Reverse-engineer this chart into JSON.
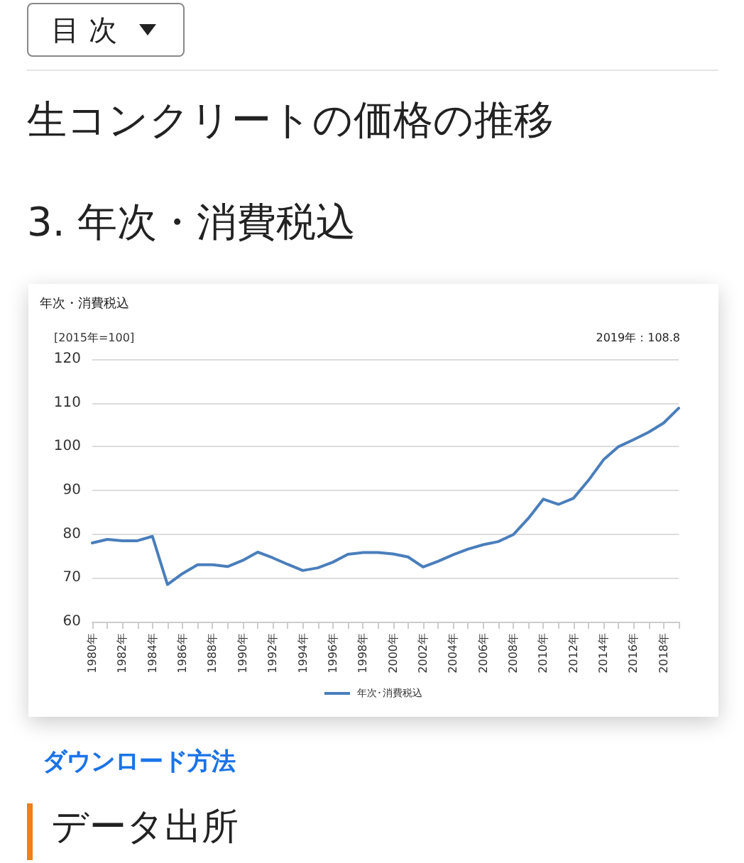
{
  "chart_data": {
    "type": "line",
    "title": "年次・消費税込",
    "ylabel": "[2015年=100]",
    "annotations": [
      "目 次",
      "生コンクリートの価格の推移",
      "3. 年次・消費税込",
      "2019年：108.8",
      "ダウンロード方法",
      "データ出所"
    ],
    "categories": [
      "1980年",
      null,
      "1982年",
      null,
      "1984年",
      null,
      "1986年",
      null,
      "1988年",
      null,
      "1990年",
      null,
      "1992年",
      null,
      "1994年",
      null,
      "1996年",
      null,
      "1998年",
      null,
      "2000年",
      null,
      "2002年",
      null,
      "2004年",
      null,
      "2006年",
      null,
      "2008年",
      null,
      "2010年",
      null,
      "2012年",
      null,
      "2014年",
      null,
      "2016年",
      null,
      "2018年",
      null
    ],
    "series": [
      {
        "name": "年次･消費税込",
        "color": "#4a7ebb",
        "values": [
          78,
          78.8,
          78.5,
          78.5,
          79.5,
          68.5,
          71,
          73,
          73,
          72.6,
          74,
          75.9,
          74.6,
          73.1,
          71.7,
          72.3,
          73.6,
          75.4,
          75.8,
          75.8,
          75.5,
          74.8,
          72.5,
          73.8,
          75.3,
          76.6,
          77.6,
          78.3,
          79.9,
          83.6,
          88,
          86.8,
          88.2,
          92.3,
          97,
          100,
          101.6,
          103.3,
          105.4,
          108.8
        ]
      }
    ],
    "ylim": [
      60,
      120
    ],
    "yticks": [
      60,
      70,
      80,
      90,
      100,
      110,
      120
    ],
    "grid": "y",
    "legend": "bottom",
    "marker": "none",
    "line_style": "solid"
  }
}
